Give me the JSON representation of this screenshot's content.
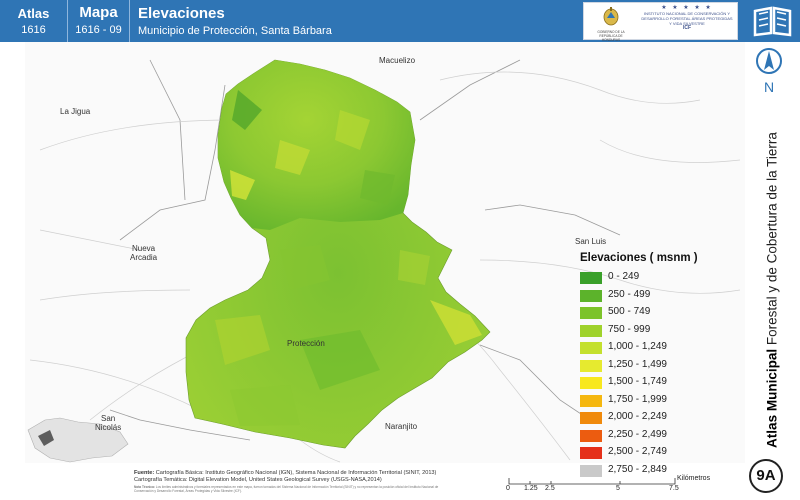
{
  "header": {
    "atlas_label": "Atlas",
    "atlas_code": "1616",
    "mapa_label": "Mapa",
    "mapa_code": "1616 - 09",
    "title": "Elevaciones",
    "subtitle": "Municipio de Protección, Santa Bárbara",
    "logo_left_text": "GOBIERNO DE LA REPÚBLICA DE HONDURAS",
    "logo_right_text": "INSTITUTO NACIONAL DE CONSERVACIÓN Y DESARROLLO FORESTAL ÁREAS PROTEGIDAS Y VIDA SILVESTRE",
    "logo_right_acronym": "ICF",
    "logo_stars": "★ ★ ★ ★ ★"
  },
  "sidebar": {
    "north_label": "N",
    "vertical_title_bold": "Atlas Municipal",
    "vertical_title_rest": " Forestal y de Cobertura de la Tierra",
    "badge": "9A"
  },
  "places": [
    {
      "name": "Macuelizo"
    },
    {
      "name": "La Jigua"
    },
    {
      "name": "San Luis"
    },
    {
      "name": "Nueva\nArcadia"
    },
    {
      "name": "Protección"
    },
    {
      "name": "San\nNicolás"
    },
    {
      "name": "Naranjito"
    }
  ],
  "legend": {
    "title": "Elevaciones ( msnm )",
    "items": [
      {
        "label": "0 - 249",
        "color": "#3aa02a"
      },
      {
        "label": "250 - 499",
        "color": "#5cb32b"
      },
      {
        "label": "500 - 749",
        "color": "#7cc32a"
      },
      {
        "label": "750 - 999",
        "color": "#9fd22b"
      },
      {
        "label": "1,000 - 1,249",
        "color": "#c4e02e"
      },
      {
        "label": "1,250 - 1,499",
        "color": "#e6ea2f"
      },
      {
        "label": "1,500 - 1,749",
        "color": "#f8e81e"
      },
      {
        "label": "1,750 - 1,999",
        "color": "#f5b70f"
      },
      {
        "label": "2,000 - 2,249",
        "color": "#f08a0c"
      },
      {
        "label": "2,250 - 2,499",
        "color": "#ec5c10"
      },
      {
        "label": "2,500 - 2,749",
        "color": "#e5301a"
      },
      {
        "label": "2,750 - 2,849",
        "color": "#c9c9c9"
      }
    ]
  },
  "source": {
    "label": "Fuente:",
    "line1": "Cartografía Básica: Instituto Geográfico Nacional (IGN), Sistema Nacional de Información Territorial (SINIT, 2013)",
    "line2": "Cartografía Temática: Digital Elevation Model, United States Geological Survey (USGS-NASA,2014)",
    "note_label": "Nota Técnica:",
    "note": "Los límites administrativos y forestales representados en este mapa, fueron tomados del Sistema Nacional de Información Territorial (SINIT) y no representan la posición oficial del Instituto Nacional de Conservación y Desarrollo Forestal, Áreas Protegidas y Vida Silvestre (ICF)."
  },
  "scale": {
    "ticks": [
      "0",
      "1.25",
      "2.5",
      "5",
      "7.5"
    ],
    "unit": "Kilómetros"
  },
  "colors": {
    "header_blue": "#2f75b5",
    "accent_blue": "#2f75b5",
    "road_gray": "#c8c8c8",
    "boundary_gray": "#9a9a9a",
    "inset_highlight": "#5d5d5d"
  }
}
